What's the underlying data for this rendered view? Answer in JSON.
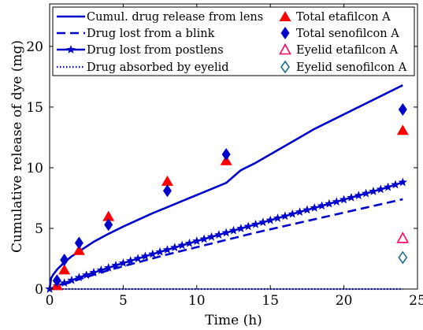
{
  "chart_data": {
    "type": "line",
    "xlabel": "Time (h)",
    "ylabel": "Cumulative release of dye (mg)",
    "xlim": [
      0,
      25
    ],
    "ylim": [
      0,
      23.5
    ],
    "x_ticks": [
      0,
      5,
      10,
      15,
      20,
      25
    ],
    "y_ticks": [
      0,
      5,
      10,
      15,
      20
    ],
    "grid": false,
    "legend_position": "top",
    "colors": {
      "blue": "#0000cc",
      "red": "#ff0000",
      "magenta": "#ff0066",
      "teal": "#1f6f8b"
    },
    "series": [
      {
        "name": "Cumul. drug release from lens",
        "style": "solid-line",
        "x": [
          0,
          0.1,
          0.25,
          0.5,
          1,
          1.5,
          2,
          3,
          4,
          5,
          6,
          7,
          8,
          9,
          10,
          11,
          12,
          13,
          14,
          15,
          16,
          17,
          18,
          19,
          20,
          21,
          22,
          23,
          24
        ],
        "y": [
          0,
          0.9,
          1.2,
          1.6,
          2.2,
          2.7,
          3.1,
          3.9,
          4.55,
          5.15,
          5.7,
          6.25,
          6.75,
          7.25,
          7.75,
          8.25,
          8.75,
          9.8,
          10.4,
          11.1,
          11.8,
          12.5,
          13.2,
          13.8,
          14.4,
          15.0,
          15.6,
          16.2,
          16.8
        ]
      },
      {
        "name": "Drug lost from a blink",
        "style": "dashed-line",
        "x": [
          0,
          1,
          2,
          4,
          6,
          8,
          10,
          12,
          14,
          16,
          18,
          20,
          22,
          24
        ],
        "y": [
          0,
          0.4,
          0.8,
          1.55,
          2.2,
          2.85,
          3.45,
          4.05,
          4.65,
          5.2,
          5.75,
          6.3,
          6.85,
          7.4
        ]
      },
      {
        "name": "Drug lost from postlens",
        "style": "line-star",
        "x": [
          0,
          0.5,
          1,
          1.5,
          2,
          2.5,
          3,
          3.5,
          4,
          4.5,
          5,
          5.5,
          6,
          6.5,
          7,
          7.5,
          8,
          8.5,
          9,
          9.5,
          10,
          10.5,
          11,
          11.5,
          12,
          12.5,
          13,
          13.5,
          14,
          14.5,
          15,
          15.5,
          16,
          16.5,
          17,
          17.5,
          18,
          18.5,
          19,
          19.5,
          20,
          20.5,
          21,
          21.5,
          22,
          22.5,
          23,
          23.5,
          24
        ],
        "y": [
          0,
          0.25,
          0.5,
          0.72,
          0.95,
          1.15,
          1.36,
          1.56,
          1.75,
          1.95,
          2.14,
          2.33,
          2.51,
          2.7,
          2.88,
          3.06,
          3.24,
          3.42,
          3.6,
          3.77,
          3.95,
          4.12,
          4.3,
          4.47,
          4.64,
          4.82,
          4.99,
          5.16,
          5.33,
          5.5,
          5.67,
          5.84,
          6.01,
          6.18,
          6.35,
          6.52,
          6.69,
          6.86,
          7.03,
          7.2,
          7.37,
          7.54,
          7.71,
          7.88,
          8.05,
          8.22,
          8.4,
          8.6,
          8.8
        ]
      },
      {
        "name": "Drug absorbed by eyelid",
        "style": "dotted-line",
        "x": [
          0,
          24
        ],
        "y": [
          0,
          0
        ]
      },
      {
        "name": "Total etafilcon A",
        "style": "filled-triangle",
        "x": [
          0.5,
          1,
          2,
          4,
          8,
          12,
          24
        ],
        "y": [
          0.3,
          1.6,
          3.2,
          6.0,
          8.9,
          10.6,
          13.1
        ]
      },
      {
        "name": "Total senofilcon A",
        "style": "filled-diamond",
        "x": [
          0.5,
          1,
          2,
          4,
          8,
          12,
          24
        ],
        "y": [
          0.7,
          2.4,
          3.8,
          5.3,
          8.1,
          11.1,
          14.8
        ]
      },
      {
        "name": "Eyelid etafilcon A",
        "style": "open-triangle",
        "x": [
          24
        ],
        "y": [
          4.2
        ]
      },
      {
        "name": "Eyelid senofilcon A",
        "style": "open-diamond",
        "x": [
          24
        ],
        "y": [
          2.6
        ]
      }
    ]
  }
}
